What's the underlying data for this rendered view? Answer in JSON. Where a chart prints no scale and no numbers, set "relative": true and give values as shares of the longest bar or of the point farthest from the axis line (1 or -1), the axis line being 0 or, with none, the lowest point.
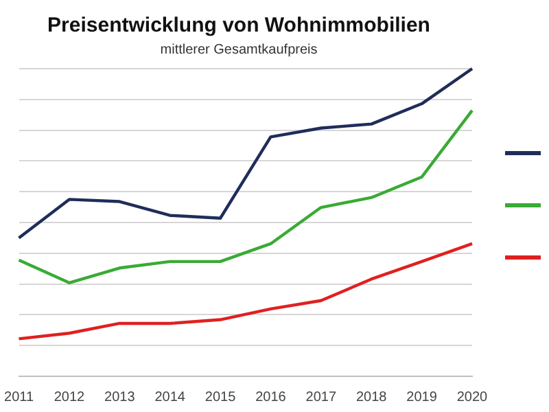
{
  "chart_data": {
    "type": "line",
    "title": "Preisentwicklung von Wohnimmobilien",
    "subtitle": "mittlerer Gesamtkaufpreis",
    "relative": true,
    "grid": "y",
    "marker": "none",
    "line_style": "solid",
    "categories": [
      "2011",
      "2012",
      "2013",
      "2014",
      "2015",
      "2016",
      "2017",
      "2018",
      "2019",
      "2020"
    ],
    "series": [
      {
        "color": "#1f2d5a",
        "values": [
          0.45,
          0.575,
          0.568,
          0.523,
          0.514,
          0.778,
          0.807,
          0.82,
          0.886,
          1
        ]
      },
      {
        "color": "#3aaa35",
        "values": [
          0.378,
          0.304,
          0.352,
          0.373,
          0.373,
          0.431,
          0.549,
          0.581,
          0.648,
          0.864
        ]
      },
      {
        "color": "#e02020",
        "values": [
          0.122,
          0.14,
          0.172,
          0.172,
          0.184,
          0.219,
          0.246,
          0.316,
          0.373,
          0.431
        ]
      }
    ]
  }
}
